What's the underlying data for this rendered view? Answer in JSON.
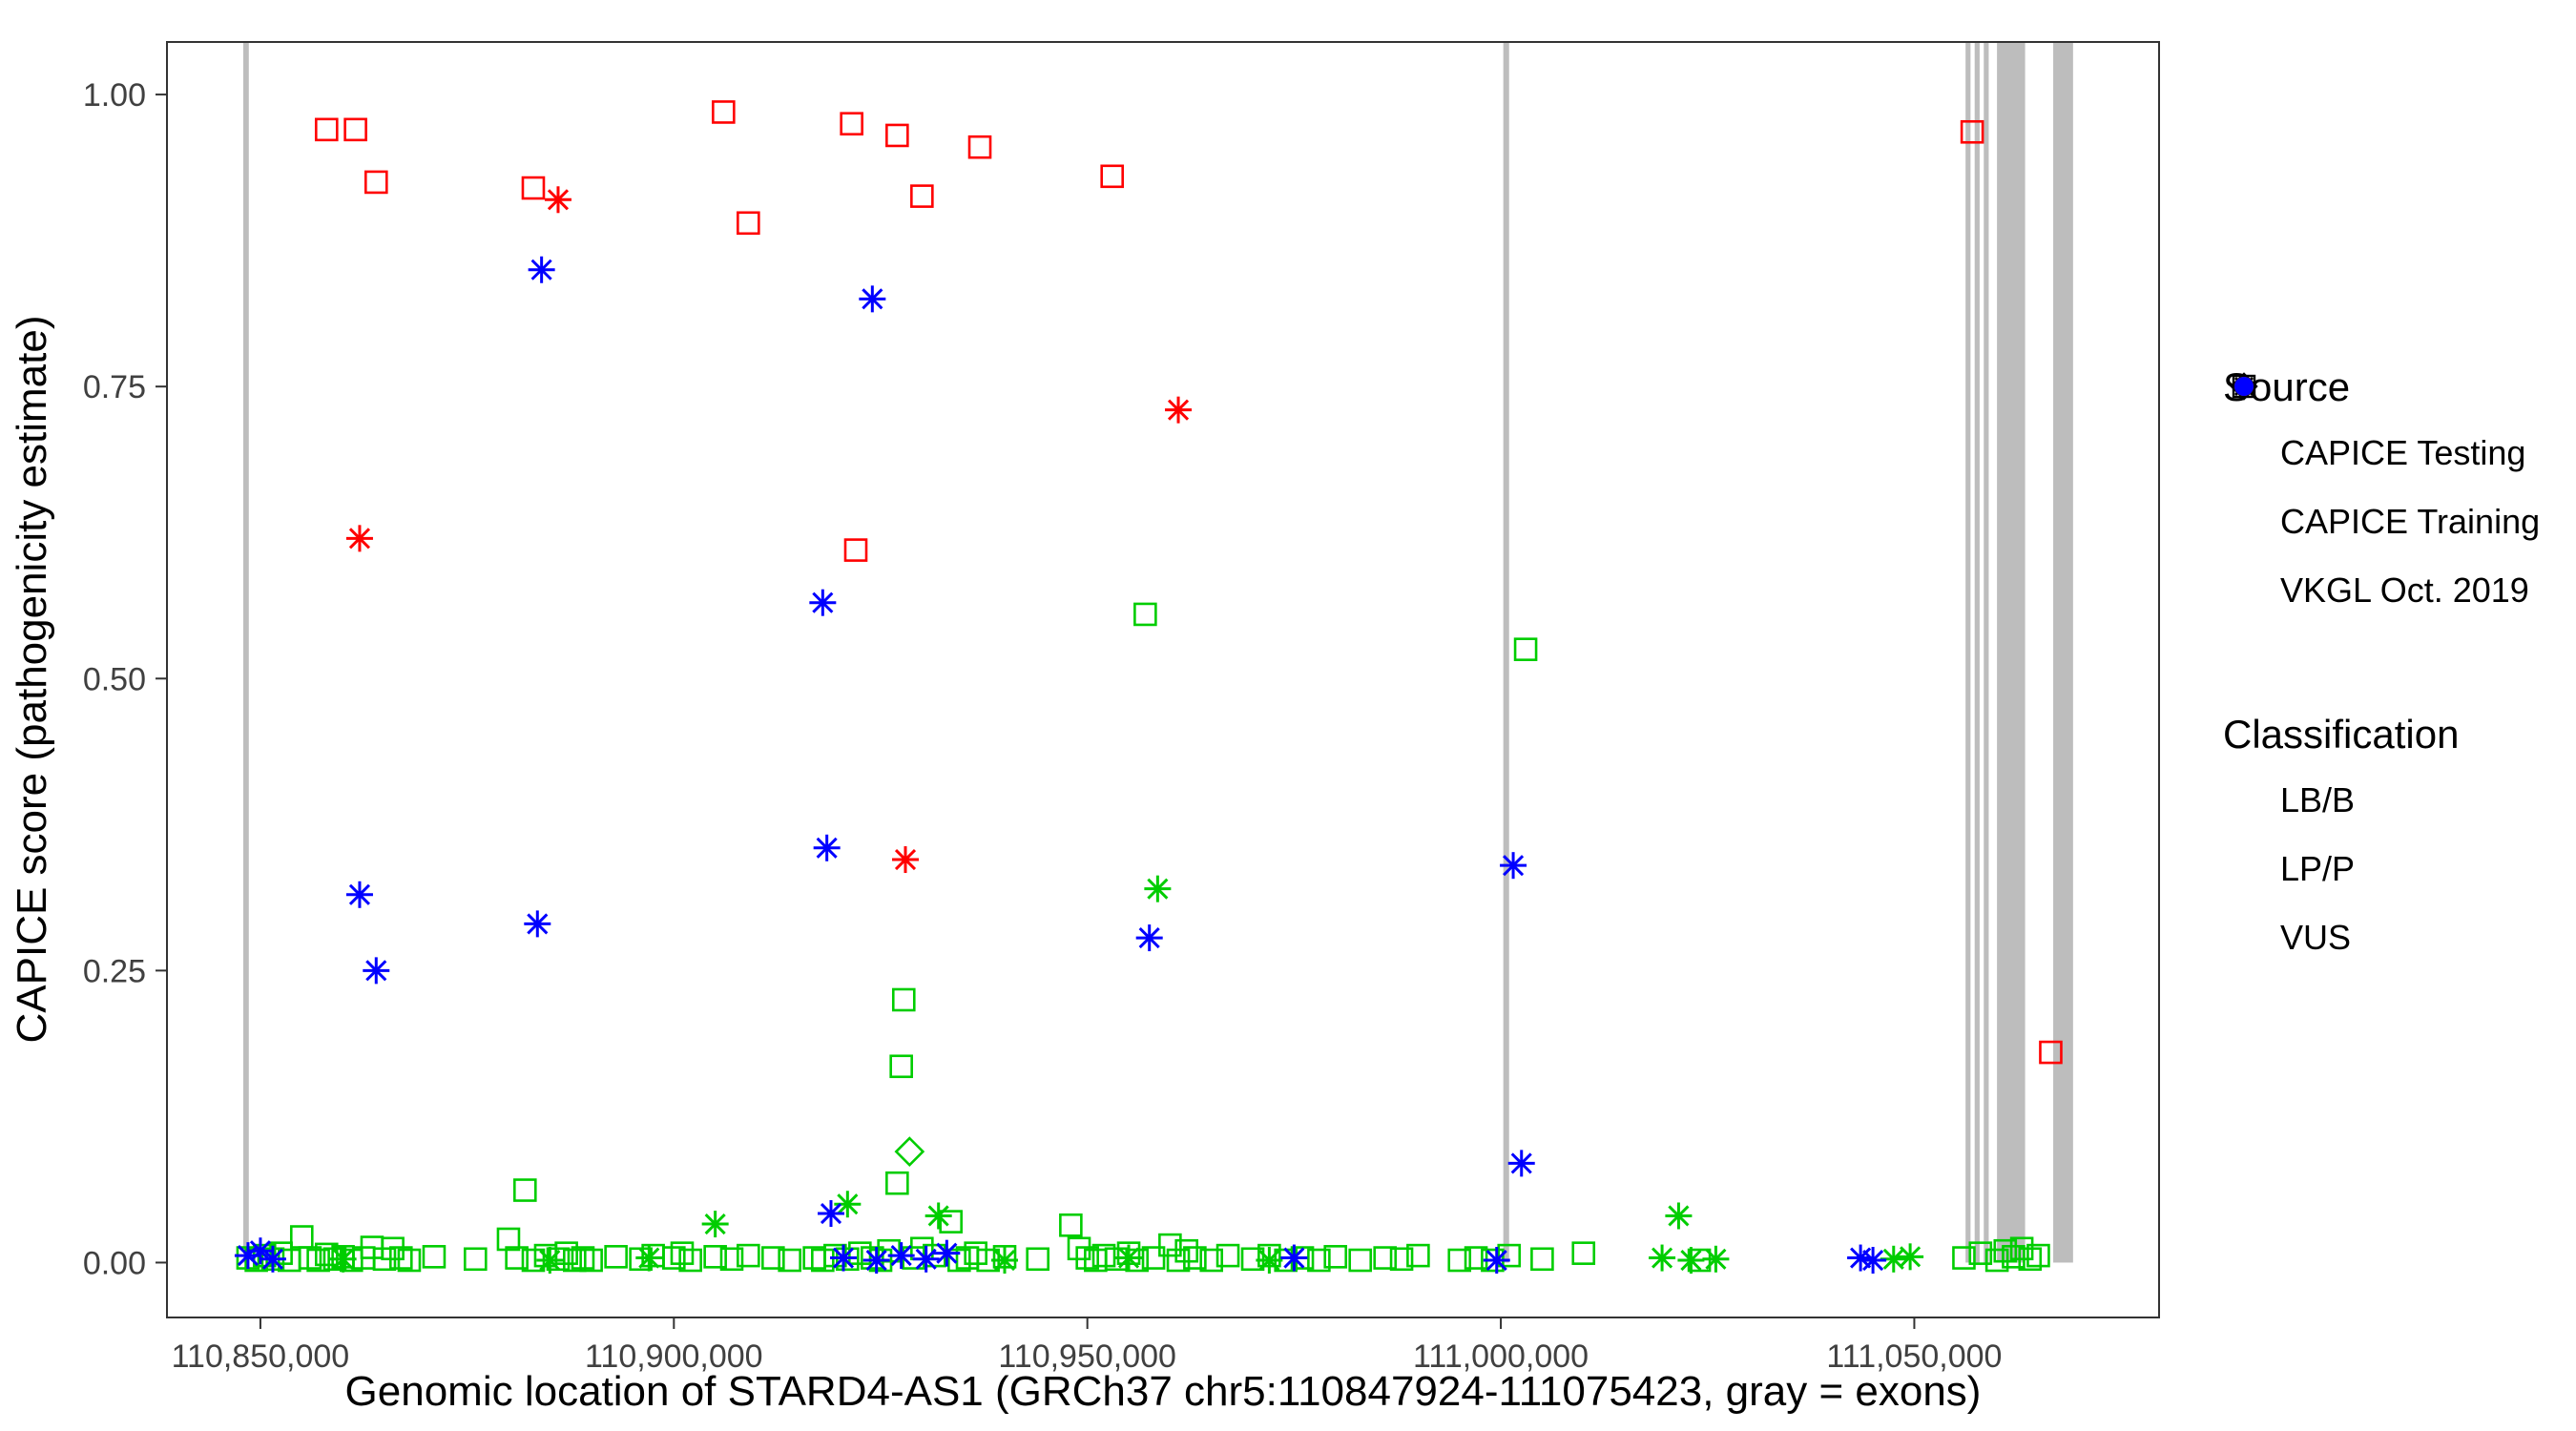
{
  "chart_data": {
    "type": "scatter",
    "title": "",
    "xlabel": "Genomic location of STARD4-AS1 (GRCh37 chr5:110847924-111075423, gray = exons)",
    "ylabel": "CAPICE score (pathogenicity estimate)",
    "xlim": [
      110838700,
      111079600
    ],
    "ylim": [
      -0.047,
      1.045
    ],
    "x_ticks": [
      110850000,
      110900000,
      110950000,
      111000000,
      111050000
    ],
    "x_tick_labels": [
      "110,850,000",
      "110,900,000",
      "110,950,000",
      "111,000,000",
      "111,050,000"
    ],
    "y_ticks": [
      0.0,
      0.25,
      0.5,
      0.75,
      1.0
    ],
    "y_tick_labels": [
      "0.00",
      "0.25",
      "0.50",
      "0.75",
      "1.00"
    ],
    "grid": false,
    "legend_position": "right",
    "exon_color": "#BDBDBD",
    "exons": [
      [
        110847924,
        110848600
      ],
      [
        111000300,
        111001000
      ],
      [
        111056200,
        111056800
      ],
      [
        111057300,
        111057900
      ],
      [
        111058400,
        111059000
      ],
      [
        111060000,
        111063400
      ],
      [
        111066800,
        111069200
      ]
    ],
    "series": [
      {
        "name": "LB/B · CAPICE Training",
        "classification": "LB/B",
        "source": "CAPICE Training",
        "color": "#00CD00",
        "shape": "square",
        "points": [
          [
            110848500,
            0.004
          ],
          [
            110849500,
            0.002
          ],
          [
            110850500,
            0.006
          ],
          [
            110851500,
            0.003
          ],
          [
            110852500,
            0.008
          ],
          [
            110853500,
            0.002
          ],
          [
            110855000,
            0.022
          ],
          [
            110856000,
            0.004
          ],
          [
            110857000,
            0.002
          ],
          [
            110858000,
            0.007
          ],
          [
            110859000,
            0.003
          ],
          [
            110860000,
            0.005
          ],
          [
            110861000,
            0.002
          ],
          [
            110862500,
            0.004
          ],
          [
            110863500,
            0.013
          ],
          [
            110865000,
            0.003
          ],
          [
            110866000,
            0.012
          ],
          [
            110867000,
            0.004
          ],
          [
            110868000,
            0.002
          ],
          [
            110871000,
            0.005
          ],
          [
            110876000,
            0.003
          ],
          [
            110880000,
            0.02
          ],
          [
            110881000,
            0.004
          ],
          [
            110882000,
            0.062
          ],
          [
            110883000,
            0.002
          ],
          [
            110884500,
            0.006
          ],
          [
            110886000,
            0.003
          ],
          [
            110887000,
            0.008
          ],
          [
            110888000,
            0.002
          ],
          [
            110889000,
            0.004
          ],
          [
            110890000,
            0.002
          ],
          [
            110893000,
            0.005
          ],
          [
            110896000,
            0.003
          ],
          [
            110897500,
            0.006
          ],
          [
            110900000,
            0.004
          ],
          [
            110901000,
            0.008
          ],
          [
            110902000,
            0.002
          ],
          [
            110905000,
            0.005
          ],
          [
            110907000,
            0.003
          ],
          [
            110909000,
            0.006
          ],
          [
            110912000,
            0.004
          ],
          [
            110914000,
            0.002
          ],
          [
            110917000,
            0.004
          ],
          [
            110918000,
            0.002
          ],
          [
            110919500,
            0.006
          ],
          [
            110921000,
            0.003
          ],
          [
            110922500,
            0.008
          ],
          [
            110924000,
            0.004
          ],
          [
            110925000,
            0.002
          ],
          [
            110926000,
            0.01
          ],
          [
            110927000,
            0.068
          ],
          [
            110927500,
            0.168
          ],
          [
            110927800,
            0.225
          ],
          [
            110929000,
            0.004
          ],
          [
            110930000,
            0.012
          ],
          [
            110931500,
            0.006
          ],
          [
            110933500,
            0.035
          ],
          [
            110934500,
            0.002
          ],
          [
            110935500,
            0.004
          ],
          [
            110936500,
            0.008
          ],
          [
            110938000,
            0.002
          ],
          [
            110940000,
            0.005
          ],
          [
            110944000,
            0.003
          ],
          [
            110948000,
            0.032
          ],
          [
            110949000,
            0.012
          ],
          [
            110950000,
            0.004
          ],
          [
            110951000,
            0.002
          ],
          [
            110952000,
            0.006
          ],
          [
            110953500,
            0.003
          ],
          [
            110955000,
            0.008
          ],
          [
            110956000,
            0.002
          ],
          [
            110957000,
            0.555
          ],
          [
            110958000,
            0.004
          ],
          [
            110960000,
            0.015
          ],
          [
            110961000,
            0.002
          ],
          [
            110962000,
            0.01
          ],
          [
            110963000,
            0.004
          ],
          [
            110965000,
            0.002
          ],
          [
            110967000,
            0.006
          ],
          [
            110970000,
            0.003
          ],
          [
            110972000,
            0.006
          ],
          [
            110974000,
            0.002
          ],
          [
            110976000,
            0.004
          ],
          [
            110978000,
            0.002
          ],
          [
            110980000,
            0.005
          ],
          [
            110983000,
            0.002
          ],
          [
            110986000,
            0.004
          ],
          [
            110988000,
            0.003
          ],
          [
            110990000,
            0.006
          ],
          [
            110995000,
            0.002
          ],
          [
            110997000,
            0.004
          ],
          [
            110999000,
            0.002
          ],
          [
            111001000,
            0.006
          ],
          [
            111003000,
            0.525
          ],
          [
            111005000,
            0.003
          ],
          [
            111010000,
            0.008
          ],
          [
            111024000,
            0.002
          ],
          [
            111056000,
            0.004
          ],
          [
            111058000,
            0.008
          ],
          [
            111060000,
            0.002
          ],
          [
            111061000,
            0.01
          ],
          [
            111062000,
            0.005
          ],
          [
            111063000,
            0.012
          ],
          [
            111064000,
            0.003
          ],
          [
            111065000,
            0.006
          ]
        ]
      },
      {
        "name": "LB/B · VKGL Oct. 2019",
        "classification": "LB/B",
        "source": "VKGL Oct. 2019",
        "color": "#00CD00",
        "shape": "asterisk",
        "points": [
          [
            110905000,
            0.033
          ],
          [
            110921000,
            0.05
          ],
          [
            110932000,
            0.04
          ],
          [
            110958500,
            0.32
          ],
          [
            111021500,
            0.04
          ],
          [
            111019500,
            0.004
          ],
          [
            111023000,
            0.002
          ],
          [
            111026000,
            0.003
          ],
          [
            110860000,
            0.003
          ],
          [
            110885000,
            0.002
          ],
          [
            110897000,
            0.004
          ],
          [
            110940000,
            0.002
          ],
          [
            110955000,
            0.004
          ],
          [
            110972000,
            0.002
          ],
          [
            111047500,
            0.003
          ],
          [
            111049500,
            0.005
          ]
        ]
      },
      {
        "name": "LB/B · CAPICE Testing",
        "classification": "LB/B",
        "source": "CAPICE Testing",
        "color": "#00CD00",
        "shape": "diamond",
        "points": [
          [
            110928500,
            0.095
          ]
        ]
      },
      {
        "name": "VUS · VKGL Oct. 2019",
        "classification": "VUS",
        "source": "VKGL Oct. 2019",
        "color": "#0000FF",
        "shape": "asterisk",
        "points": [
          [
            110884000,
            0.85
          ],
          [
            110924000,
            0.825
          ],
          [
            110918000,
            0.565
          ],
          [
            110918500,
            0.355
          ],
          [
            110862000,
            0.315
          ],
          [
            110883500,
            0.29
          ],
          [
            110864000,
            0.25
          ],
          [
            110957500,
            0.278
          ],
          [
            111001500,
            0.34
          ],
          [
            111002500,
            0.085
          ],
          [
            110919000,
            0.042
          ],
          [
            110848500,
            0.006
          ],
          [
            110850000,
            0.01
          ],
          [
            110851500,
            0.003
          ],
          [
            110920500,
            0.004
          ],
          [
            110924500,
            0.002
          ],
          [
            110927500,
            0.006
          ],
          [
            110930500,
            0.003
          ],
          [
            110933000,
            0.008
          ],
          [
            110975000,
            0.004
          ],
          [
            110999500,
            0.002
          ],
          [
            111043500,
            0.004
          ],
          [
            111045000,
            0.002
          ]
        ]
      },
      {
        "name": "LP/P · CAPICE Training",
        "classification": "LP/P",
        "source": "CAPICE Training",
        "color": "#FF0000",
        "shape": "square",
        "points": [
          [
            110858000,
            0.97
          ],
          [
            110861500,
            0.97
          ],
          [
            110864000,
            0.925
          ],
          [
            110883000,
            0.92
          ],
          [
            110906000,
            0.985
          ],
          [
            110909000,
            0.89
          ],
          [
            110921500,
            0.975
          ],
          [
            110927000,
            0.965
          ],
          [
            110930000,
            0.913
          ],
          [
            110937000,
            0.955
          ],
          [
            110953000,
            0.93
          ],
          [
            110922000,
            0.61
          ],
          [
            111057000,
            0.968
          ],
          [
            111066500,
            0.18
          ]
        ]
      },
      {
        "name": "LP/P · VKGL Oct. 2019",
        "classification": "LP/P",
        "source": "VKGL Oct. 2019",
        "color": "#FF0000",
        "shape": "asterisk",
        "points": [
          [
            110886000,
            0.91
          ],
          [
            110862000,
            0.62
          ],
          [
            110961000,
            0.73
          ],
          [
            110928000,
            0.345
          ]
        ]
      }
    ]
  },
  "legend": {
    "source": {
      "title": "Source",
      "items": [
        {
          "label": "CAPICE Testing",
          "shape": "diamond"
        },
        {
          "label": "CAPICE Training",
          "shape": "square"
        },
        {
          "label": "VKGL Oct. 2019",
          "shape": "asterisk"
        }
      ]
    },
    "classification": {
      "title": "Classification",
      "items": [
        {
          "label": "LB/B",
          "color": "#00CD00"
        },
        {
          "label": "LP/P",
          "color": "#FF0000"
        },
        {
          "label": "VUS",
          "color": "#0000FF"
        }
      ]
    }
  }
}
